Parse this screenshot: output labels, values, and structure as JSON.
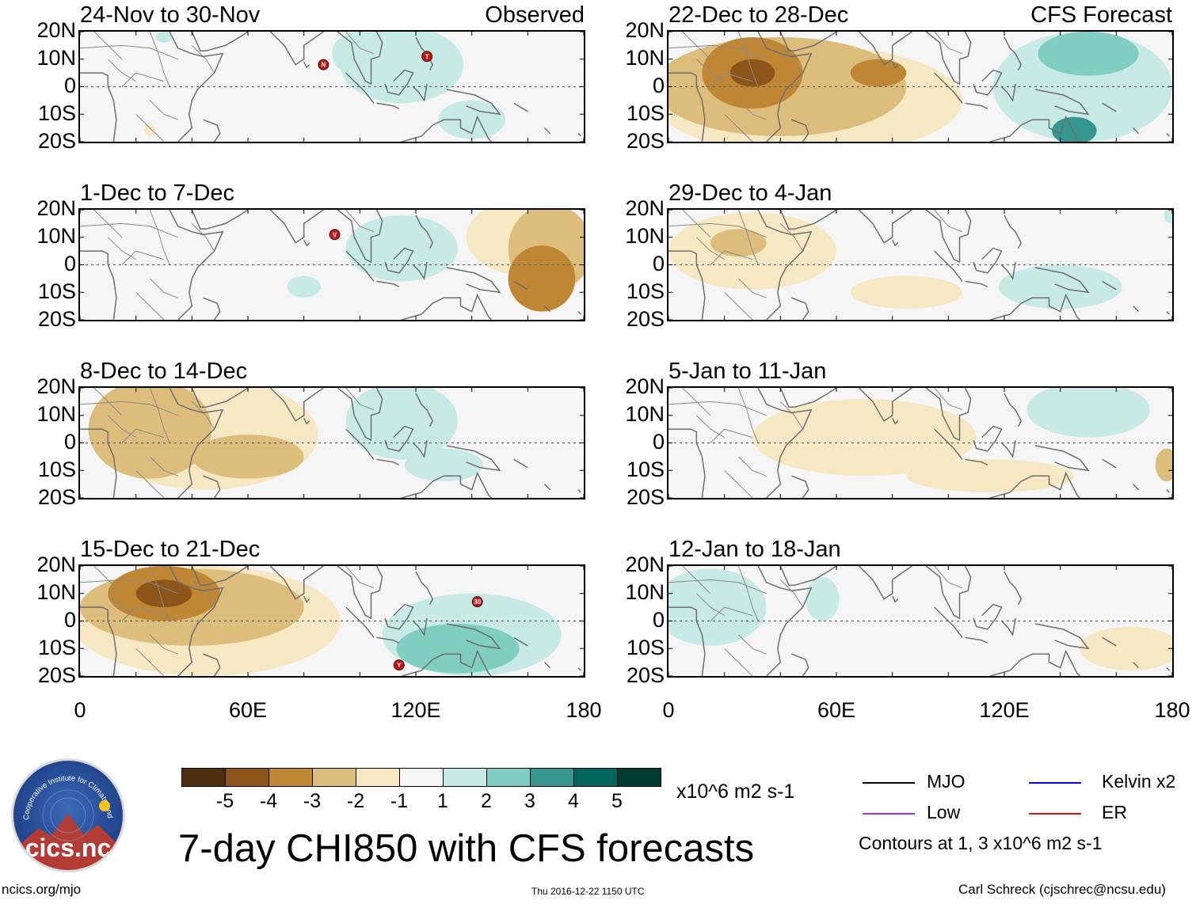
{
  "figure": {
    "title": "7-day CHI850 with CFS forecasts",
    "website": "ncics.org/mjo",
    "timestamp": "Thu 2016-12-22 1150 UTC",
    "author": "Carl Schreck (cjschrec@ncsu.edu)",
    "observed_label": "Observed",
    "forecast_label": "CFS Forecast",
    "logo": {
      "text": "cics.nc",
      "ring_text": "Cooperative Institute for Climate and Satellites"
    }
  },
  "chart_data": {
    "type": "heatmap",
    "variable": "CHI850 (850-hPa velocity potential anomaly)",
    "units": "x10^6 m2 s-1",
    "latitude_ticks": [
      "20N",
      "10N",
      "0",
      "10S",
      "20S"
    ],
    "longitude_ticks": [
      "0",
      "60E",
      "120E",
      "180"
    ],
    "lat_range": [
      -20,
      20
    ],
    "lon_range": [
      0,
      180
    ],
    "colorbar": {
      "levels": [
        "-5",
        "-4",
        "-3",
        "-2",
        "-1",
        "1",
        "2",
        "3",
        "4",
        "5"
      ],
      "colors": [
        "#4d2f0f",
        "#8c5519",
        "#bf8733",
        "#dcbd7b",
        "#f6e8c3",
        "#f5f5f5",
        "#c7eae5",
        "#80cdc1",
        "#35978f",
        "#01665e",
        "#003c30"
      ]
    },
    "contours_note": "Contours at 1, 3 x10^6 m2 s-1",
    "legend": [
      {
        "name": "MJO",
        "color": "#000000"
      },
      {
        "name": "Kelvin x2",
        "color": "#0000dd"
      },
      {
        "name": "Low",
        "color": "#9933ee"
      },
      {
        "name": "ER",
        "color": "#dd1111"
      }
    ],
    "panels": [
      {
        "column": "observed",
        "row": 0,
        "period": "24-Nov to 30-Nov",
        "anomalies": [
          {
            "lon": 115,
            "lat": 8,
            "value": 1.5,
            "rx": 22,
            "ry": 14
          },
          {
            "lon": 100,
            "lat": 12,
            "value": 1,
            "rx": 10,
            "ry": 8
          },
          {
            "lon": 140,
            "lat": -12,
            "value": 1,
            "rx": 12,
            "ry": 7
          },
          {
            "lon": 30,
            "lat": 18,
            "value": 1.5,
            "rx": 3,
            "ry": 2
          },
          {
            "lon": 25,
            "lat": -16,
            "value": -1.5,
            "rx": 2,
            "ry": 2
          }
        ],
        "storms": [
          {
            "lon": 87,
            "lat": 8,
            "label": "N"
          },
          {
            "lon": 124,
            "lat": 11,
            "label": "T"
          }
        ]
      },
      {
        "column": "observed",
        "row": 1,
        "period": "1-Dec to 7-Dec",
        "anomalies": [
          {
            "lon": 115,
            "lat": 6,
            "value": 1.5,
            "rx": 20,
            "ry": 12
          },
          {
            "lon": 165,
            "lat": -5,
            "value": -3.5,
            "rx": 12,
            "ry": 12
          },
          {
            "lon": 168,
            "lat": 6,
            "value": -2.5,
            "rx": 15,
            "ry": 16
          },
          {
            "lon": 160,
            "lat": 10,
            "value": -1.5,
            "rx": 22,
            "ry": 14
          },
          {
            "lon": 80,
            "lat": -8,
            "value": 1,
            "rx": 6,
            "ry": 4
          }
        ],
        "storms": [
          {
            "lon": 91,
            "lat": 11,
            "label": "V"
          }
        ]
      },
      {
        "column": "observed",
        "row": 2,
        "period": "8-Dec to 14-Dec",
        "anomalies": [
          {
            "lon": 25,
            "lat": 5,
            "value": -2.5,
            "rx": 22,
            "ry": 18
          },
          {
            "lon": 60,
            "lat": -5,
            "value": -2.5,
            "rx": 20,
            "ry": 8
          },
          {
            "lon": 45,
            "lat": 3,
            "value": -1.5,
            "rx": 40,
            "ry": 20
          },
          {
            "lon": 115,
            "lat": 8,
            "value": 1.5,
            "rx": 20,
            "ry": 14
          },
          {
            "lon": 130,
            "lat": -8,
            "value": 1,
            "rx": 14,
            "ry": 6
          }
        ],
        "storms": []
      },
      {
        "column": "observed",
        "row": 3,
        "period": "15-Dec to 21-Dec",
        "anomalies": [
          {
            "lon": 30,
            "lat": 10,
            "value": -4.5,
            "rx": 10,
            "ry": 5
          },
          {
            "lon": 30,
            "lat": 10,
            "value": -3.5,
            "rx": 20,
            "ry": 10
          },
          {
            "lon": 40,
            "lat": 5,
            "value": -2.5,
            "rx": 40,
            "ry": 14
          },
          {
            "lon": 45,
            "lat": 0,
            "value": -1.5,
            "rx": 48,
            "ry": 20
          },
          {
            "lon": 135,
            "lat": -10,
            "value": 2.5,
            "rx": 22,
            "ry": 9
          },
          {
            "lon": 140,
            "lat": -5,
            "value": 1.5,
            "rx": 32,
            "ry": 15
          }
        ],
        "storms": [
          {
            "lon": 142,
            "lat": 7,
            "label": "30"
          },
          {
            "lon": 114,
            "lat": -16,
            "label": "Y"
          }
        ]
      },
      {
        "column": "forecast",
        "row": 0,
        "period": "22-Dec to 28-Dec",
        "anomalies": [
          {
            "lon": 30,
            "lat": 5,
            "value": -4.5,
            "rx": 8,
            "ry": 5
          },
          {
            "lon": 30,
            "lat": 5,
            "value": -3.5,
            "rx": 18,
            "ry": 13
          },
          {
            "lon": 75,
            "lat": 5,
            "value": -3.5,
            "rx": 10,
            "ry": 5
          },
          {
            "lon": 40,
            "lat": 0,
            "value": -2.5,
            "rx": 45,
            "ry": 18
          },
          {
            "lon": 50,
            "lat": -5,
            "value": -1.5,
            "rx": 55,
            "ry": 20
          },
          {
            "lon": 150,
            "lat": 12,
            "value": 2.5,
            "rx": 18,
            "ry": 8
          },
          {
            "lon": 145,
            "lat": -16,
            "value": 3.5,
            "rx": 8,
            "ry": 5
          },
          {
            "lon": 148,
            "lat": 0,
            "value": 1.5,
            "rx": 32,
            "ry": 20
          }
        ],
        "storms": []
      },
      {
        "column": "forecast",
        "row": 1,
        "period": "29-Dec to 4-Jan",
        "anomalies": [
          {
            "lon": 25,
            "lat": 8,
            "value": -2.5,
            "rx": 10,
            "ry": 5
          },
          {
            "lon": 30,
            "lat": 5,
            "value": -1.5,
            "rx": 30,
            "ry": 14
          },
          {
            "lon": 85,
            "lat": -10,
            "value": -1.5,
            "rx": 20,
            "ry": 6
          },
          {
            "lon": 140,
            "lat": -8,
            "value": 1.5,
            "rx": 22,
            "ry": 8
          },
          {
            "lon": 180,
            "lat": 18,
            "value": 1.5,
            "rx": 3,
            "ry": 3
          }
        ],
        "storms": []
      },
      {
        "column": "forecast",
        "row": 2,
        "period": "5-Jan to 11-Jan",
        "anomalies": [
          {
            "lon": 70,
            "lat": 2,
            "value": -1.5,
            "rx": 40,
            "ry": 14
          },
          {
            "lon": 115,
            "lat": -12,
            "value": -1.5,
            "rx": 30,
            "ry": 6
          },
          {
            "lon": 150,
            "lat": 12,
            "value": 1.5,
            "rx": 22,
            "ry": 10
          },
          {
            "lon": 178,
            "lat": -8,
            "value": -2.5,
            "rx": 4,
            "ry": 6
          }
        ],
        "storms": []
      },
      {
        "column": "forecast",
        "row": 3,
        "period": "12-Jan to 18-Jan",
        "anomalies": [
          {
            "lon": 15,
            "lat": 5,
            "value": 1.5,
            "rx": 20,
            "ry": 14
          },
          {
            "lon": 55,
            "lat": 8,
            "value": 1.5,
            "rx": 6,
            "ry": 8
          },
          {
            "lon": 165,
            "lat": -10,
            "value": -1.5,
            "rx": 18,
            "ry": 8
          }
        ],
        "storms": []
      }
    ]
  }
}
